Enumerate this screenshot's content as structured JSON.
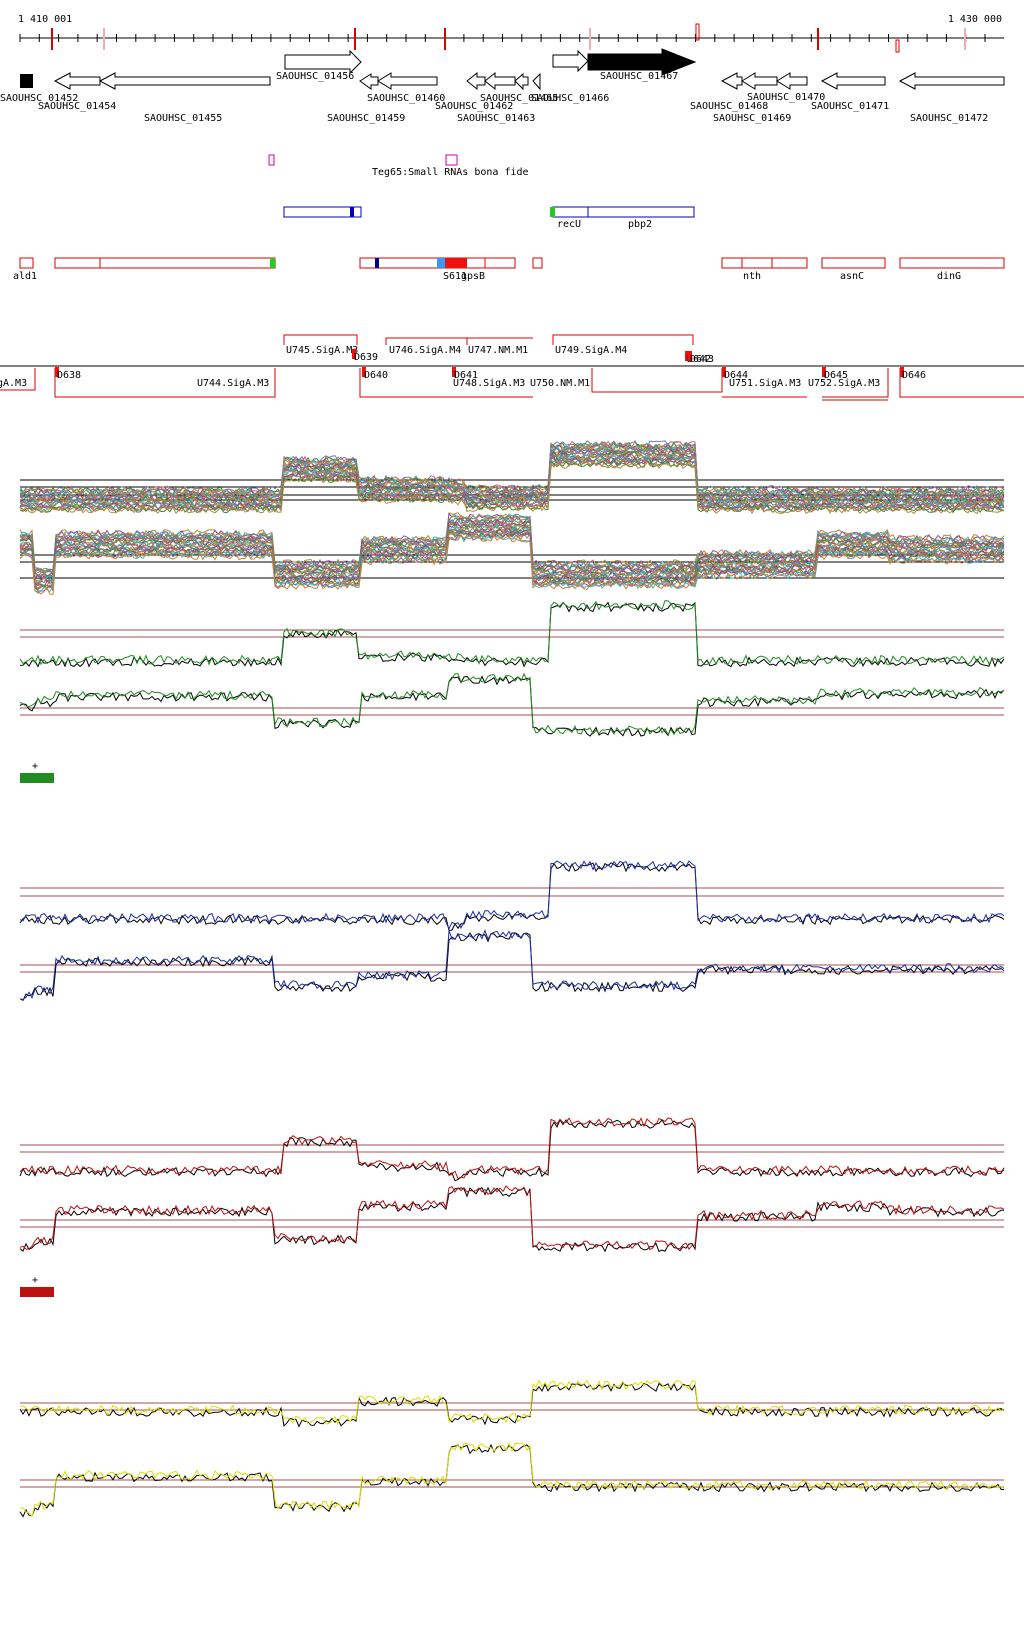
{
  "ruler": {
    "start_label": "1 410 001",
    "end_label": "1 430 000"
  },
  "genes": [
    {
      "label": "SAOUHSC_01452",
      "dir": "right",
      "filled": true
    },
    {
      "label": "SAOUHSC_01454",
      "dir": "left",
      "filled": false
    },
    {
      "label": "SAOUHSC_01455",
      "dir": "left",
      "filled": false
    },
    {
      "label": "SAOUHSC_01456",
      "dir": "right",
      "filled": false
    },
    {
      "label": "SAOUHSC_01459",
      "dir": "left",
      "filled": false
    },
    {
      "label": "SAOUHSC_01460",
      "dir": "left",
      "filled": false
    },
    {
      "label": "SAOUHSC_01462",
      "dir": "left",
      "filled": false
    },
    {
      "label": "SAOUHSC_01463",
      "dir": "left",
      "filled": false
    },
    {
      "label": "SAOUHSC_01465",
      "dir": "left",
      "filled": false
    },
    {
      "label": "SAOUHSC_01466",
      "dir": "right",
      "filled": false
    },
    {
      "label": "SAOUHSC_01467",
      "dir": "right",
      "filled": true
    },
    {
      "label": "SAOUHSC_01468",
      "dir": "left",
      "filled": false
    },
    {
      "label": "SAOUHSC_01469",
      "dir": "left",
      "filled": false
    },
    {
      "label": "SAOUHSC_01470",
      "dir": "left",
      "filled": false
    },
    {
      "label": "SAOUHSC_01471",
      "dir": "left",
      "filled": false
    },
    {
      "label": "SAOUHSC_01472",
      "dir": "left",
      "filled": false
    }
  ],
  "small_rna_label": "Teg65:Small RNAs bona fide",
  "fwd_features": [
    "recU",
    "pbp2"
  ],
  "rev_features": [
    "ald1",
    "S611",
    "gpsB",
    "nth",
    "asnC",
    "dinG"
  ],
  "transcription_units": [
    "U745.SigA.M3",
    "U746.SigA.M4",
    "U747.NM.M1",
    "U749.SigA.M4",
    "U744.SigA.M3",
    "U748.SigA.M3",
    "U750.NM.M1",
    "U751.SigA.M3",
    "U752.SigA.M3",
    "gA.M3"
  ],
  "downregions": [
    "D638",
    "D639",
    "D640",
    "D641",
    "D642",
    "D643",
    "D644",
    "D645",
    "D646"
  ],
  "legend_marks": [
    "+",
    "+"
  ],
  "colors": {
    "gene_outline": "#000000",
    "srna": "#cc00cc",
    "fwd_feature": "#0000bb",
    "rev_feature": "#dd0000",
    "green_track": "#228b22",
    "blue_track": "#1a2eaa",
    "red_track": "#bb1111",
    "yellow_track": "#dddd00",
    "threshold": "#a05050"
  }
}
